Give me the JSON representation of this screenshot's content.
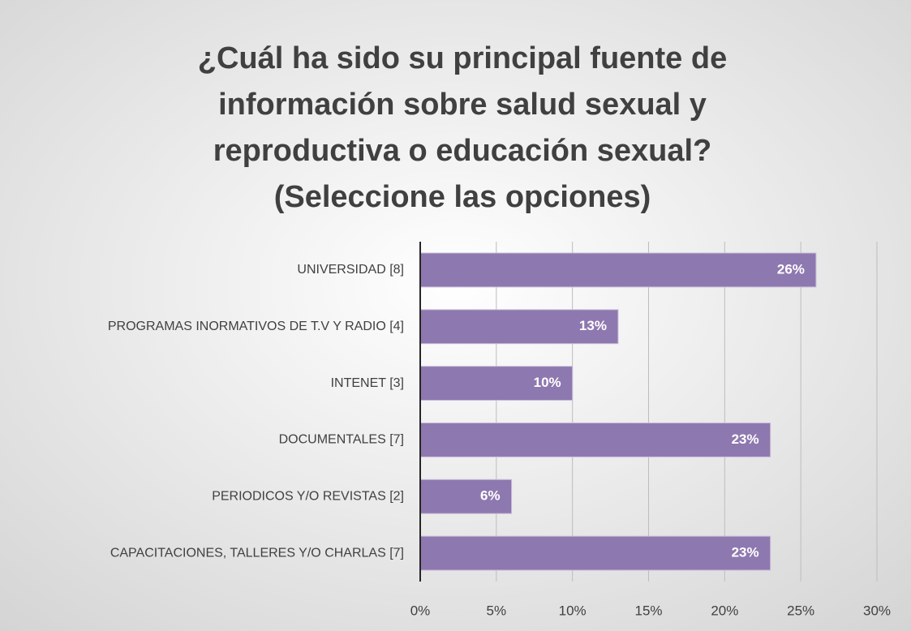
{
  "chart_data": {
    "type": "bar",
    "orientation": "horizontal",
    "title": [
      "¿Cuál ha sido su principal fuente de",
      "información sobre salud sexual y",
      "reproductiva o educación sexual?",
      "(Seleccione las opciones)"
    ],
    "categories": [
      "UNIVERSIDAD  [8]",
      "PROGRAMAS INORMATIVOS DE T.V Y RADIO  [4]",
      "INTENET [3]",
      "DOCUMENTALES [7]",
      "PERIODICOS Y/O REVISTAS  [2]",
      "CAPACITACIONES, TALLERES Y/O CHARLAS  [7]"
    ],
    "values": [
      26,
      13,
      10,
      23,
      6,
      23
    ],
    "value_labels": [
      "26%",
      "13%",
      "10%",
      "23%",
      "6%",
      "23%"
    ],
    "color": "#8e78b0",
    "xlim": [
      0,
      30
    ],
    "xticks": [
      {
        "value": 0,
        "label": "0%"
      },
      {
        "value": 5,
        "label": "5%"
      },
      {
        "value": 10,
        "label": "10%"
      },
      {
        "value": 15,
        "label": "15%"
      },
      {
        "value": 20,
        "label": "20%"
      },
      {
        "value": 25,
        "label": "25%"
      },
      {
        "value": 30,
        "label": "30%"
      }
    ],
    "grid": true
  }
}
